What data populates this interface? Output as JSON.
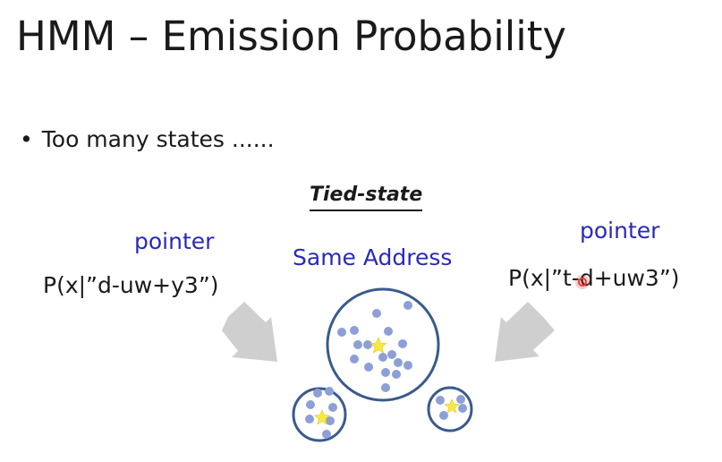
{
  "slide": {
    "title": "HMM – Emission Probability",
    "bullet": "Too many states ......",
    "tied_state_label": "Tied-state",
    "pointer_left": "pointer",
    "pointer_right": "pointer",
    "same_address": "Same Address",
    "prob_left": "P(x|”d-uw+y3”)",
    "prob_right": "P(x|”t-d+uw3”)"
  },
  "colors": {
    "text": "#1a1a1a",
    "accent_blue": "#2a2ab8",
    "circle_stroke": "#3a5a8c",
    "dot_fill": "#8d9fd6",
    "star_fill": "#f7e84a",
    "arrow_fill": "#cfcfcf",
    "cursor_red": "#e8302a"
  }
}
